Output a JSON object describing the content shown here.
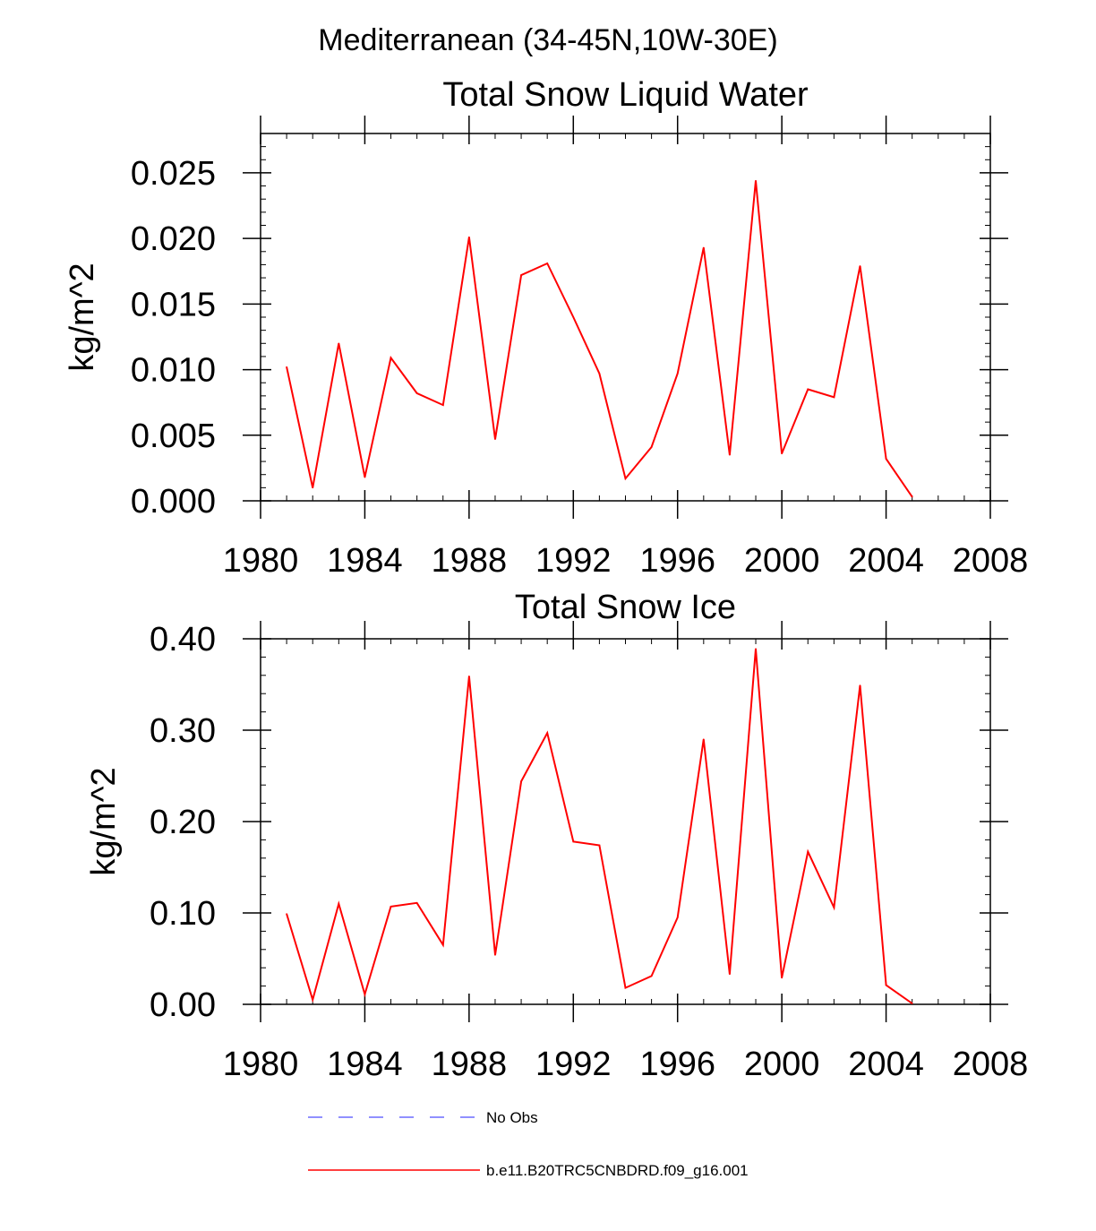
{
  "figure": {
    "region_title": "Mediterranean (34-45N,10W-30E)"
  },
  "colors": {
    "model_line": "#ff0000",
    "obs_line": "#6b6bff",
    "axis": "#000000"
  },
  "legend": {
    "items": [
      {
        "label": "No Obs",
        "style": "dashed",
        "color": "#6b6bff"
      },
      {
        "label": "b.e11.B20TRC5CNBDRD.f09_g16.001",
        "style": "solid",
        "color": "#ff0000"
      }
    ]
  },
  "chart_data": [
    {
      "type": "line",
      "title": "Total Snow Liquid Water",
      "xlabel": "",
      "ylabel": "kg/m^2",
      "xlim": [
        1980,
        2008
      ],
      "ylim": [
        0.0,
        0.028
      ],
      "x_ticks": [
        1980,
        1984,
        1988,
        1992,
        1996,
        2000,
        2004,
        2008
      ],
      "x_tick_labels": [
        "1980",
        "1984",
        "1988",
        "1992",
        "1996",
        "2000",
        "2004",
        "2008"
      ],
      "y_ticks": [
        0.0,
        0.005,
        0.01,
        0.015,
        0.02,
        0.025
      ],
      "y_tick_labels": [
        "0.000",
        "0.005",
        "0.010",
        "0.015",
        "0.020",
        "0.025"
      ],
      "series": [
        {
          "name": "b.e11.B20TRC5CNBDRD.f09_g16.001",
          "x": [
            1981,
            1982,
            1983,
            1984,
            1985,
            1986,
            1987,
            1988,
            1989,
            1990,
            1991,
            1992,
            1993,
            1994,
            1995,
            1996,
            1997,
            1998,
            1999,
            2000,
            2001,
            2002,
            2003,
            2004,
            2005
          ],
          "values": [
            0.0102,
            0.001,
            0.012,
            0.0018,
            0.0109,
            0.0082,
            0.0073,
            0.0201,
            0.0047,
            0.0172,
            0.0181,
            0.014,
            0.0097,
            0.0017,
            0.0041,
            0.0097,
            0.0193,
            0.0035,
            0.0244,
            0.0036,
            0.0085,
            0.0079,
            0.0179,
            0.0032,
            0.0003
          ]
        }
      ]
    },
    {
      "type": "line",
      "title": "Total Snow Ice",
      "xlabel": "",
      "ylabel": "kg/m^2",
      "xlim": [
        1980,
        2008
      ],
      "ylim": [
        0.0,
        0.4
      ],
      "x_ticks": [
        1980,
        1984,
        1988,
        1992,
        1996,
        2000,
        2004,
        2008
      ],
      "x_tick_labels": [
        "1980",
        "1984",
        "1988",
        "1992",
        "1996",
        "2000",
        "2004",
        "2008"
      ],
      "y_ticks": [
        0.0,
        0.1,
        0.2,
        0.3,
        0.4
      ],
      "y_tick_labels": [
        "0.00",
        "0.10",
        "0.20",
        "0.30",
        "0.40"
      ],
      "series": [
        {
          "name": "b.e11.B20TRC5CNBDRD.f09_g16.001",
          "x": [
            1981,
            1982,
            1983,
            1984,
            1985,
            1986,
            1987,
            1988,
            1989,
            1990,
            1991,
            1992,
            1993,
            1994,
            1995,
            1996,
            1997,
            1998,
            1999,
            2000,
            2001,
            2002,
            2003,
            2004,
            2005
          ],
          "values": [
            0.099,
            0.005,
            0.11,
            0.011,
            0.107,
            0.111,
            0.065,
            0.359,
            0.054,
            0.244,
            0.297,
            0.178,
            0.174,
            0.018,
            0.031,
            0.095,
            0.29,
            0.033,
            0.389,
            0.029,
            0.167,
            0.106,
            0.349,
            0.021,
            0.001
          ]
        }
      ]
    }
  ]
}
